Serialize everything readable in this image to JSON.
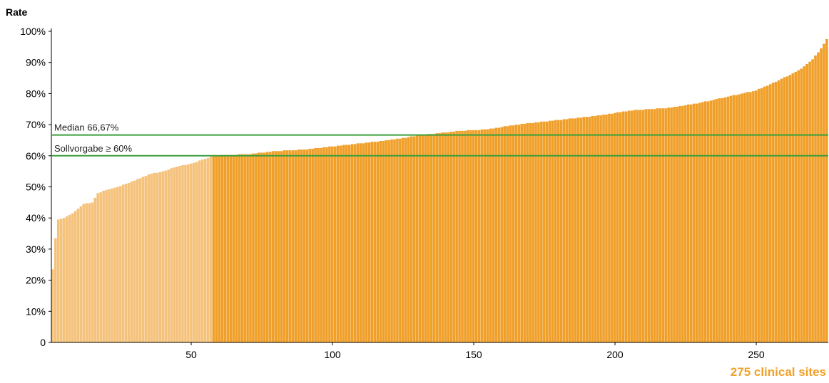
{
  "chart_data": {
    "type": "bar",
    "ylabel": "Rate",
    "xlabel": "275 clinical sites",
    "n_sites": 275,
    "ylim": [
      0,
      100
    ],
    "xlim": [
      0,
      275
    ],
    "y_ticks": [
      {
        "value": 0,
        "label": "0"
      },
      {
        "value": 10,
        "label": "10%"
      },
      {
        "value": 20,
        "label": "20%"
      },
      {
        "value": 30,
        "label": "30%"
      },
      {
        "value": 40,
        "label": "40%"
      },
      {
        "value": 50,
        "label": "50%"
      },
      {
        "value": 60,
        "label": "60%"
      },
      {
        "value": 70,
        "label": "70%"
      },
      {
        "value": 80,
        "label": "80%"
      },
      {
        "value": 90,
        "label": "90%"
      },
      {
        "value": 100,
        "label": "100%"
      }
    ],
    "x_ticks": [
      {
        "value": 50,
        "label": "50"
      },
      {
        "value": 100,
        "label": "100"
      },
      {
        "value": 150,
        "label": "150"
      },
      {
        "value": 200,
        "label": "200"
      },
      {
        "value": 250,
        "label": "250"
      }
    ],
    "reference_lines": [
      {
        "value": 66.67,
        "label": "Median 66,67%",
        "color": "#3a9e3a"
      },
      {
        "value": 60,
        "label": "Sollvorgabe ≥ 60%",
        "color": "#3a9e3a"
      }
    ],
    "values_sorted_ascending_anchor_points": [
      [
        1,
        23.5
      ],
      [
        2,
        33.5
      ],
      [
        3,
        39.5
      ],
      [
        5,
        40
      ],
      [
        8,
        41.5
      ],
      [
        10,
        43
      ],
      [
        12,
        44.5
      ],
      [
        15,
        45
      ],
      [
        17,
        48
      ],
      [
        20,
        49
      ],
      [
        24,
        50
      ],
      [
        30,
        52
      ],
      [
        35,
        54
      ],
      [
        40,
        55
      ],
      [
        45,
        56.5
      ],
      [
        50,
        57.5
      ],
      [
        55,
        59
      ],
      [
        58,
        60
      ],
      [
        70,
        60.5
      ],
      [
        80,
        61.5
      ],
      [
        90,
        62
      ],
      [
        100,
        63
      ],
      [
        110,
        64
      ],
      [
        120,
        65
      ],
      [
        127,
        66
      ],
      [
        135,
        67
      ],
      [
        145,
        68
      ],
      [
        155,
        68.5
      ],
      [
        165,
        70
      ],
      [
        180,
        71.5
      ],
      [
        195,
        73
      ],
      [
        205,
        74.5
      ],
      [
        220,
        75.5
      ],
      [
        230,
        77
      ],
      [
        240,
        79
      ],
      [
        250,
        81
      ],
      [
        255,
        83
      ],
      [
        262,
        86
      ],
      [
        266,
        88
      ],
      [
        270,
        91
      ],
      [
        273,
        94.5
      ],
      [
        275,
        97.5
      ]
    ],
    "colors": {
      "below_target": "#f5c27c",
      "at_or_above_target": "#f0a02a",
      "reference_line": "#3a9e3a",
      "axis": "#000000",
      "xlabel": "#f0a02a"
    }
  }
}
